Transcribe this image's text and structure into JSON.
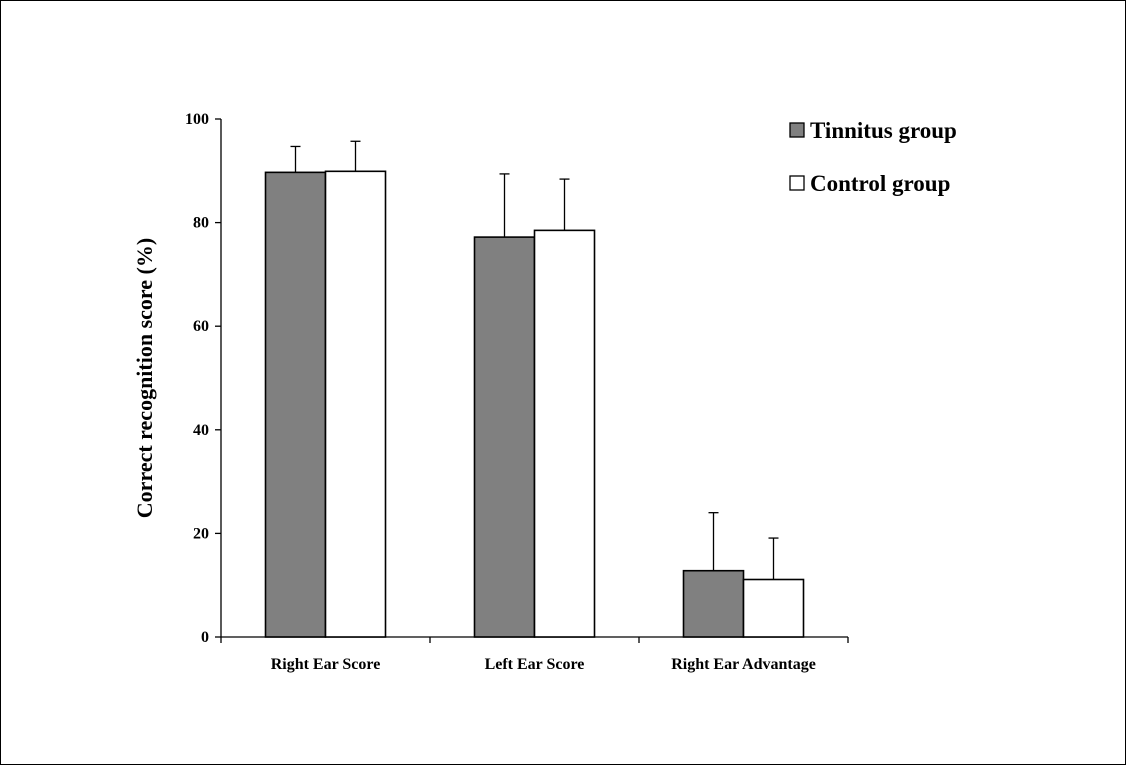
{
  "chart_data": {
    "type": "bar",
    "categories": [
      "Right Ear Score",
      "Left Ear Score",
      "Right Ear Advantage"
    ],
    "series": [
      {
        "name": "Tinnitus group",
        "values": [
          89.7,
          77.2,
          12.8
        ],
        "errors": [
          5.0,
          12.2,
          11.2
        ],
        "color": "#808080"
      },
      {
        "name": "Control group",
        "values": [
          89.9,
          78.5,
          11.1
        ],
        "errors": [
          5.8,
          9.9,
          8.0
        ],
        "color": "#ffffff"
      }
    ],
    "title": "",
    "xlabel": "",
    "ylabel": "Correct recognition score (%)",
    "ylim": [
      0,
      100
    ],
    "yticks": [
      "0",
      "20",
      "40",
      "60",
      "80",
      "100"
    ],
    "grid": false,
    "legend_position": "top-right"
  }
}
